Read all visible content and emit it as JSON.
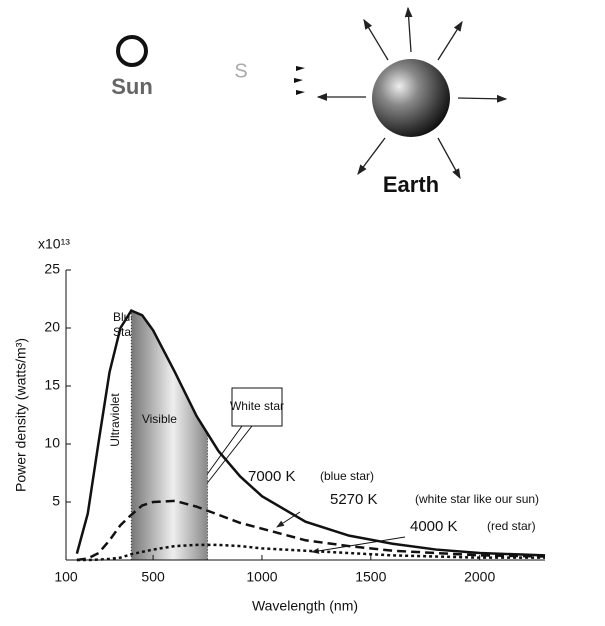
{
  "diagram": {
    "sun_label": "Sun",
    "source_label": "S",
    "earth_label": "Earth"
  },
  "chart_data": {
    "type": "line",
    "xlabel": "Wavelength (nm)",
    "ylabel": "Power density (watts/m³)",
    "y_multiplier": "x10¹³",
    "x": [
      150,
      200,
      250,
      300,
      350,
      400,
      450,
      500,
      600,
      700,
      800,
      900,
      1000,
      1200,
      1400,
      1600,
      1800,
      2000,
      2300
    ],
    "series": [
      {
        "name": "7000 K",
        "note": "(blue star)",
        "color": "#111111",
        "dash": "solid",
        "values": [
          0.55,
          4.0,
          10.2,
          16.2,
          20.0,
          21.5,
          21.1,
          19.8,
          16.2,
          12.4,
          9.4,
          7.2,
          5.5,
          3.3,
          2.1,
          1.4,
          0.9,
          0.6,
          0.4
        ]
      },
      {
        "name": "5270 K",
        "note": "(white star like our sun)",
        "color": "#111111",
        "dash": "dashed",
        "values": [
          0.0,
          0.13,
          0.6,
          1.7,
          3.0,
          3.9,
          4.7,
          5.0,
          5.1,
          4.6,
          3.9,
          3.2,
          2.7,
          1.7,
          1.2,
          0.8,
          0.6,
          0.4,
          0.3
        ]
      },
      {
        "name": "4000 K",
        "note": "(red star)",
        "color": "#111111",
        "dash": "dotted",
        "values": [
          0.0,
          0.0,
          0.03,
          0.1,
          0.2,
          0.5,
          0.7,
          0.9,
          1.2,
          1.3,
          1.3,
          1.2,
          1.0,
          0.8,
          0.6,
          0.4,
          0.3,
          0.2,
          0.2
        ]
      }
    ],
    "band": {
      "label": "Visible",
      "from": 400,
      "to": 750
    },
    "annotations": {
      "ultraviolet": "Ultraviolet",
      "blue_star": "Blue Star",
      "white_star": "White star"
    },
    "xlim": [
      100,
      2300
    ],
    "ylim": [
      0,
      25
    ],
    "xticks": [
      100,
      500,
      1000,
      1500,
      2000
    ],
    "yticks": [
      5,
      10,
      15,
      20,
      25
    ]
  }
}
